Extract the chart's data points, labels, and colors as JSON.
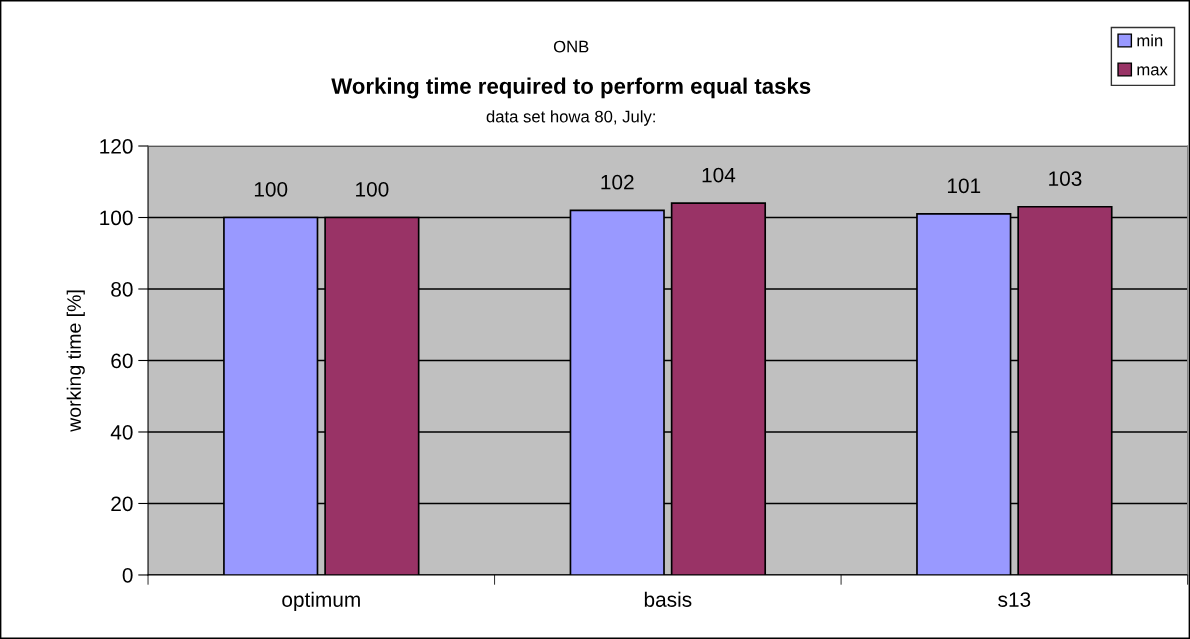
{
  "chart_data": {
    "type": "bar",
    "title": "Working time required to perform equal tasks",
    "subtitle": "data set howa 80, July:",
    "annotations": [
      "ONB"
    ],
    "ylabel": "working time [%]",
    "categories": [
      "optimum",
      "basis",
      "s13"
    ],
    "series": [
      {
        "name": "min",
        "color": "#9999ff",
        "values": [
          100,
          102,
          101
        ]
      },
      {
        "name": "max",
        "color": "#993366",
        "values": [
          100,
          104,
          103
        ]
      }
    ],
    "ylim": [
      0,
      120
    ],
    "yticks": [
      0,
      20,
      40,
      60,
      80,
      100,
      120
    ],
    "grid": "y",
    "legend": "top right",
    "data_labels": true
  }
}
